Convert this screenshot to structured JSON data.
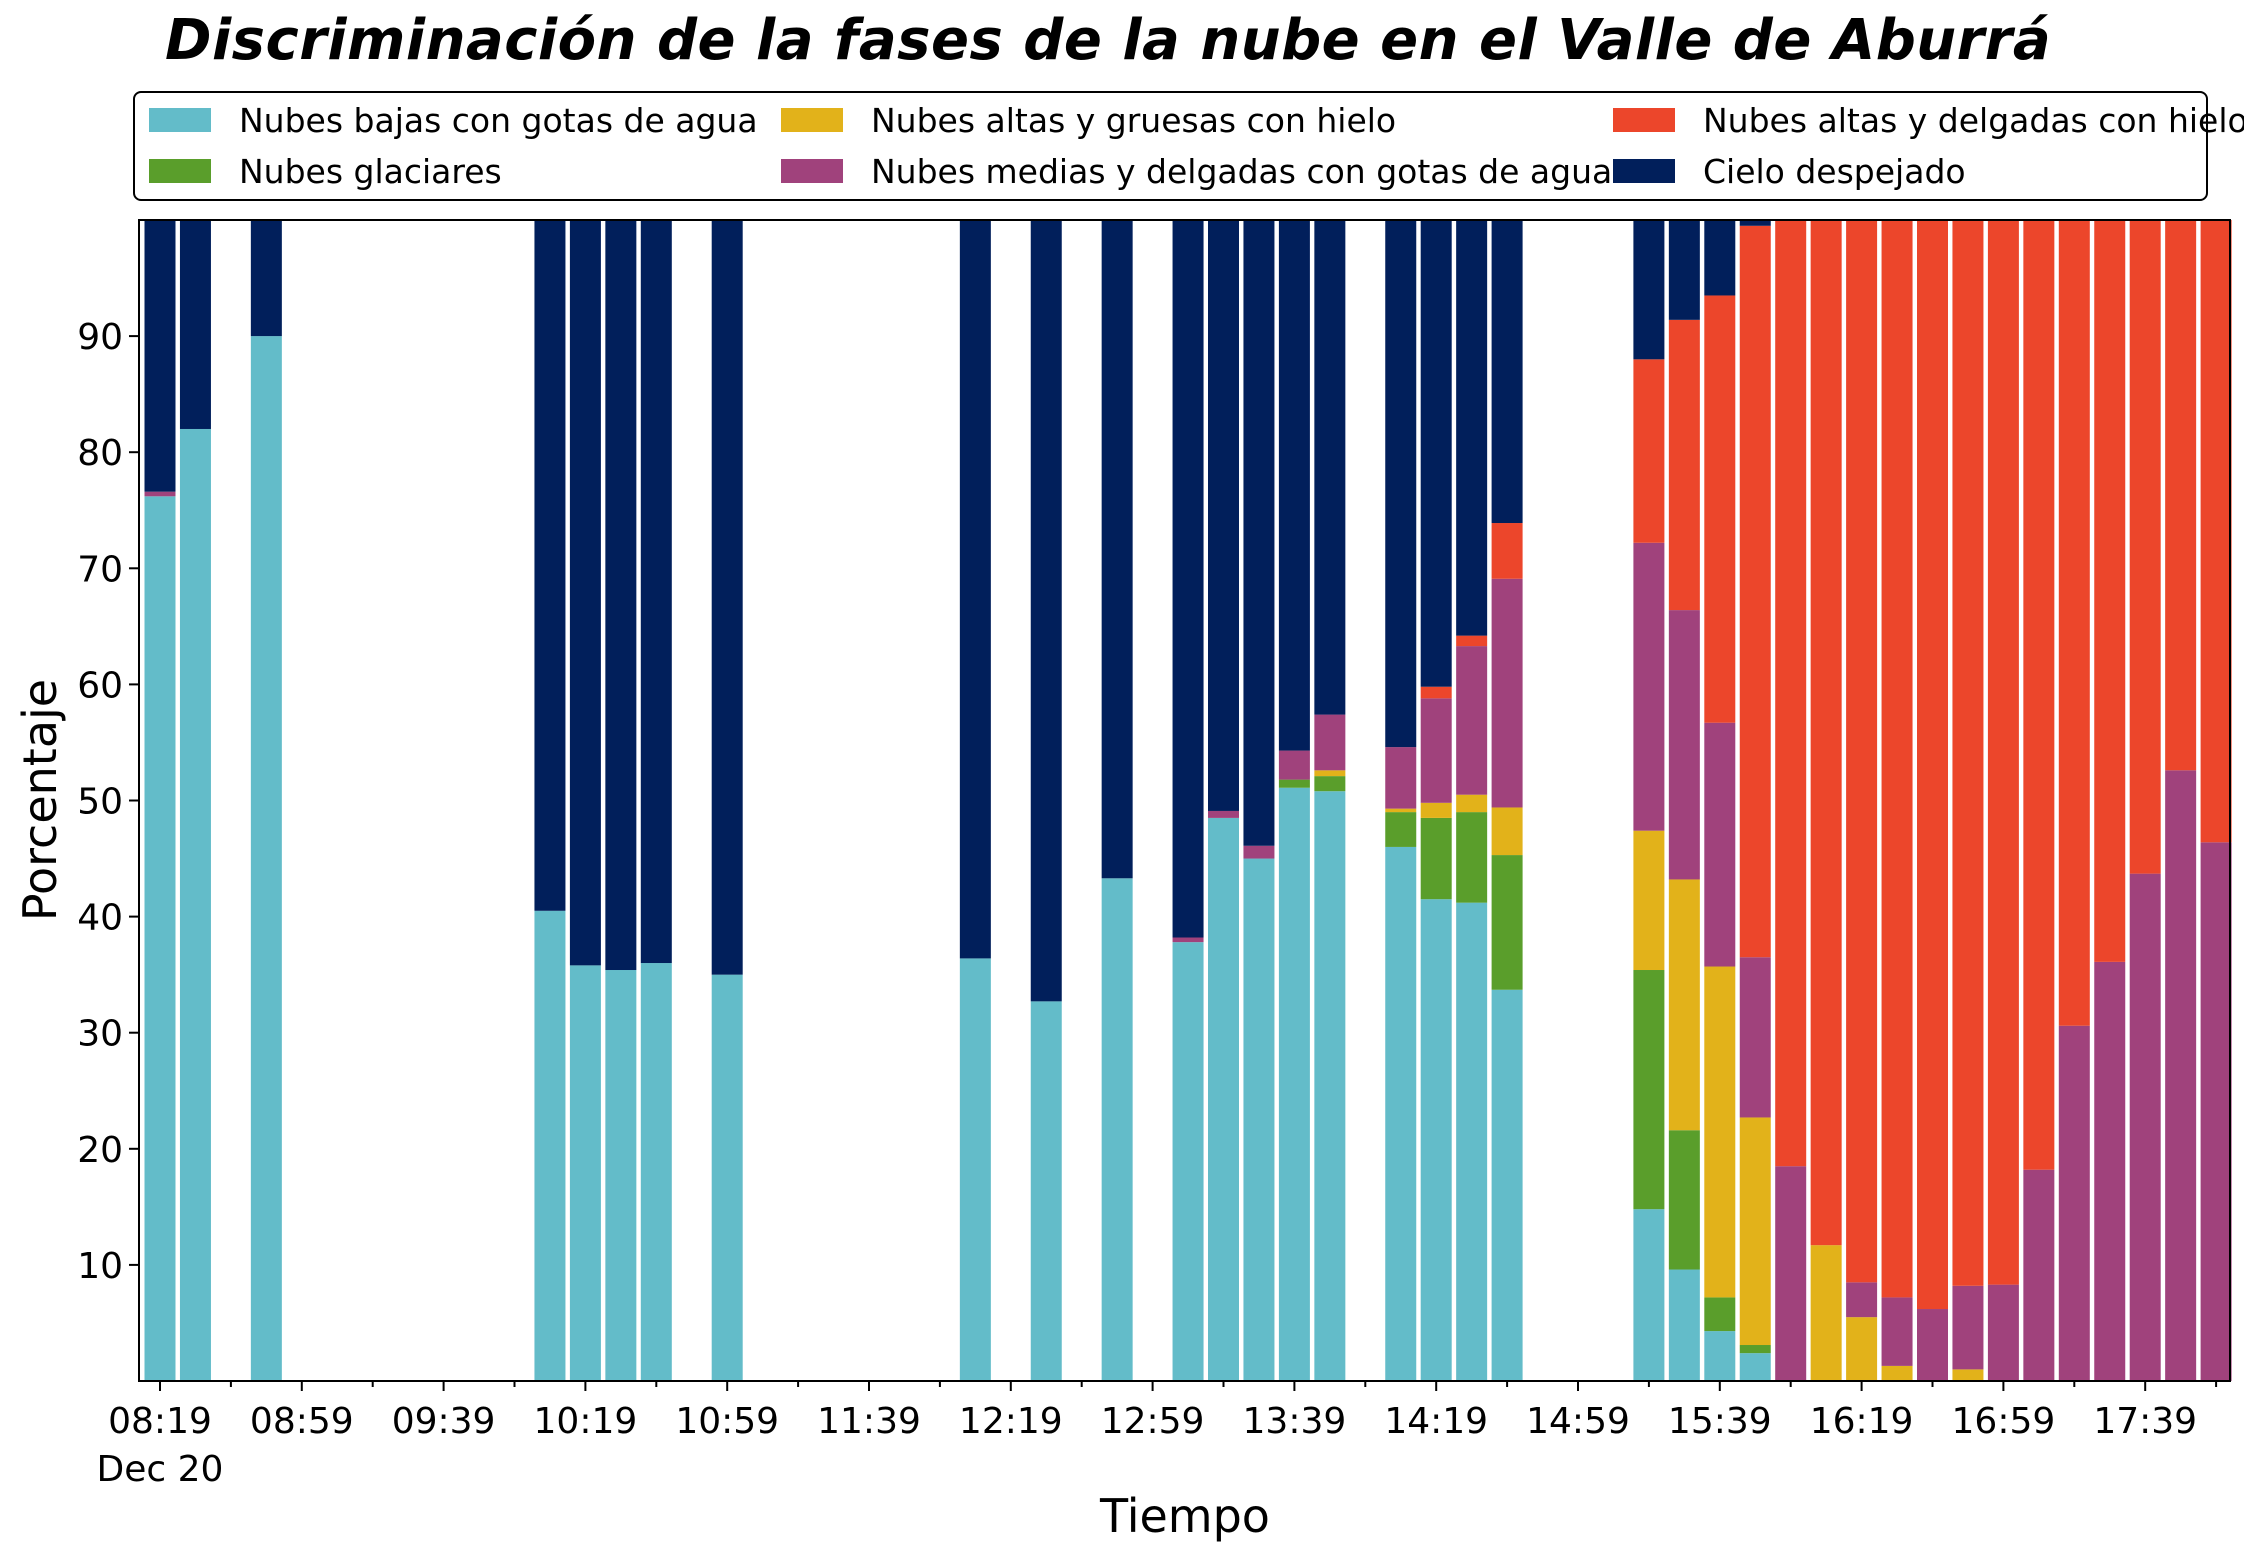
{
  "chart_data": {
    "type": "bar",
    "stacked": true,
    "title": "Discriminación de la fases de la nube en el Valle de Aburrá",
    "xlabel": "Tiempo",
    "ylabel": "Porcentaje",
    "ylim": [
      0,
      100
    ],
    "yticks": [
      10,
      20,
      30,
      40,
      50,
      60,
      70,
      80,
      90
    ],
    "x_tick_labels": [
      "08:19",
      "08:59",
      "09:39",
      "10:19",
      "10:59",
      "11:39",
      "12:19",
      "12:59",
      "13:39",
      "14:19",
      "14:59",
      "15:39",
      "16:19",
      "16:59",
      "17:39"
    ],
    "x_date_label": "Dec 20",
    "x_start": "08:19",
    "interval_minutes": 10,
    "legend_location": "top, outside plot area, 3 columns",
    "grid": false,
    "series": [
      {
        "name": "Nubes bajas con gotas de agua",
        "color": "#63bcc9"
      },
      {
        "name": "Nubes glaciares",
        "color": "#5a9e2b"
      },
      {
        "name": "Nubes altas y gruesas con hielo",
        "color": "#e2b21a"
      },
      {
        "name": "Nubes medias y delgadas con gotas de agua",
        "color": "#a0427c"
      },
      {
        "name": "Nubes altas y delgadas con hielo",
        "color": "#ec462b"
      },
      {
        "name": "Cielo despejado",
        "color": "#011f5b"
      }
    ],
    "bars": [
      {
        "time": "08:19",
        "values": [
          76.2,
          0,
          0,
          0.4,
          0,
          23.4
        ]
      },
      {
        "time": "08:29",
        "values": [
          82.0,
          0,
          0,
          0,
          0,
          18.0
        ]
      },
      {
        "time": "08:49",
        "values": [
          90.0,
          0,
          0,
          0,
          0,
          10.0
        ]
      },
      {
        "time": "10:09",
        "values": [
          40.5,
          0,
          0,
          0,
          0,
          59.5
        ]
      },
      {
        "time": "10:19",
        "values": [
          35.8,
          0,
          0,
          0,
          0,
          64.2
        ]
      },
      {
        "time": "10:29",
        "values": [
          35.4,
          0,
          0,
          0,
          0,
          64.6
        ]
      },
      {
        "time": "10:39",
        "values": [
          36.0,
          0,
          0,
          0,
          0,
          64.0
        ]
      },
      {
        "time": "10:59",
        "values": [
          35.0,
          0,
          0,
          0,
          0,
          65.0
        ]
      },
      {
        "time": "12:09",
        "values": [
          36.4,
          0,
          0,
          0,
          0,
          63.6
        ]
      },
      {
        "time": "12:29",
        "values": [
          32.7,
          0,
          0,
          0,
          0,
          67.3
        ]
      },
      {
        "time": "12:49",
        "values": [
          43.3,
          0,
          0,
          0,
          0,
          56.7
        ]
      },
      {
        "time": "13:09",
        "values": [
          37.8,
          0,
          0,
          0.4,
          0,
          61.8
        ]
      },
      {
        "time": "13:19",
        "values": [
          48.5,
          0,
          0,
          0.6,
          0,
          50.9
        ]
      },
      {
        "time": "13:29",
        "values": [
          45.0,
          0,
          0,
          1.1,
          0,
          53.9
        ]
      },
      {
        "time": "13:39",
        "values": [
          51.1,
          0.7,
          0,
          2.5,
          0,
          45.7
        ]
      },
      {
        "time": "13:49",
        "values": [
          50.8,
          1.3,
          0.5,
          4.8,
          0,
          42.6
        ]
      },
      {
        "time": "14:09",
        "values": [
          46.0,
          3.0,
          0.3,
          5.3,
          0,
          45.4
        ]
      },
      {
        "time": "14:19",
        "values": [
          41.5,
          7.0,
          1.3,
          9.0,
          1.0,
          40.2
        ]
      },
      {
        "time": "14:29",
        "values": [
          41.2,
          7.8,
          1.5,
          12.8,
          0.9,
          35.8
        ]
      },
      {
        "time": "14:39",
        "values": [
          33.7,
          11.6,
          4.1,
          19.7,
          4.8,
          26.1
        ]
      },
      {
        "time": "15:19",
        "values": [
          14.8,
          20.6,
          12.0,
          24.8,
          15.8,
          12.0
        ]
      },
      {
        "time": "15:29",
        "values": [
          9.6,
          12.0,
          21.6,
          23.2,
          25.0,
          8.6
        ]
      },
      {
        "time": "15:39",
        "values": [
          4.3,
          2.9,
          28.5,
          21.0,
          36.8,
          6.5
        ]
      },
      {
        "time": "15:49",
        "values": [
          2.4,
          0.7,
          19.6,
          13.8,
          63.0,
          0.5
        ]
      },
      {
        "time": "15:59",
        "values": [
          0,
          0,
          0,
          18.5,
          81.5,
          0
        ]
      },
      {
        "time": "16:09",
        "values": [
          0,
          0,
          11.7,
          0,
          88.3,
          0
        ]
      },
      {
        "time": "16:19",
        "values": [
          0,
          0,
          5.5,
          3.0,
          91.5,
          0
        ]
      },
      {
        "time": "16:29",
        "values": [
          0,
          0,
          1.3,
          5.9,
          92.8,
          0
        ]
      },
      {
        "time": "16:39",
        "values": [
          0,
          0,
          0,
          6.2,
          93.8,
          0
        ]
      },
      {
        "time": "16:49",
        "values": [
          0,
          0,
          1.0,
          7.2,
          91.8,
          0
        ]
      },
      {
        "time": "16:59",
        "values": [
          0,
          0,
          0,
          8.3,
          91.7,
          0
        ]
      },
      {
        "time": "17:09",
        "values": [
          0,
          0,
          0,
          18.2,
          81.8,
          0
        ]
      },
      {
        "time": "17:19",
        "values": [
          0,
          0,
          0,
          30.6,
          69.4,
          0
        ]
      },
      {
        "time": "17:29",
        "values": [
          0,
          0,
          0,
          36.1,
          63.9,
          0
        ]
      },
      {
        "time": "17:39",
        "values": [
          0,
          0,
          0,
          43.7,
          56.3,
          0
        ]
      },
      {
        "time": "17:49",
        "values": [
          0,
          0,
          0,
          52.6,
          47.4,
          0
        ]
      },
      {
        "time": "17:59",
        "values": [
          0,
          0,
          0,
          46.4,
          53.6,
          0
        ]
      }
    ]
  }
}
